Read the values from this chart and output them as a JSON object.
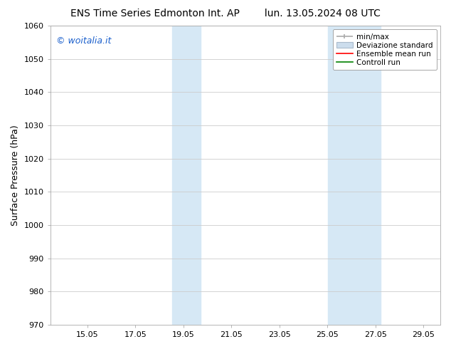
{
  "title_left": "ENS Time Series Edmonton Int. AP",
  "title_right": "lun. 13.05.2024 08 UTC",
  "ylabel": "Surface Pressure (hPa)",
  "ylim": [
    970,
    1060
  ],
  "yticks": [
    970,
    980,
    990,
    1000,
    1010,
    1020,
    1030,
    1040,
    1050,
    1060
  ],
  "xlim_start": 13.5,
  "xlim_end": 29.75,
  "xtick_vals": [
    15.05,
    17.05,
    19.05,
    21.05,
    23.05,
    25.05,
    27.05,
    29.05
  ],
  "xtick_labels": [
    "15.05",
    "17.05",
    "19.05",
    "21.05",
    "23.05",
    "25.05",
    "27.05",
    "29.05"
  ],
  "shaded_bands": [
    {
      "x_start": 18.58,
      "x_end": 19.75
    },
    {
      "x_start": 25.08,
      "x_end": 27.25
    }
  ],
  "shaded_color": "#d6e8f5",
  "watermark_text": "© woitalia.it",
  "watermark_color": "#1a5fcc",
  "legend_minmax_color": "#aaaaaa",
  "legend_devstd_color": "#ccdded",
  "legend_devstd_edge": "#aabbcc",
  "legend_ensemble_color": "red",
  "legend_control_color": "green",
  "bg_color": "#ffffff",
  "grid_color": "#cccccc",
  "title_fontsize": 10,
  "ylabel_fontsize": 9,
  "tick_fontsize": 8,
  "watermark_fontsize": 9,
  "legend_fontsize": 7.5
}
